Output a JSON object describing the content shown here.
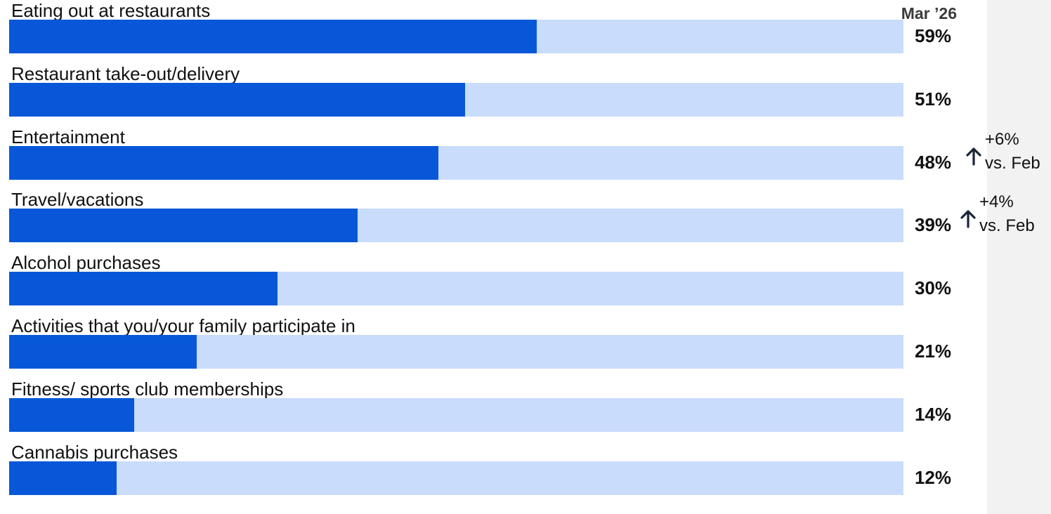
{
  "colors": {
    "bar_fill": "#0757d8",
    "bar_track": "#c9dcfc",
    "side_panel": "#f2f2f2",
    "arrow": "#1a2438"
  },
  "icons": {
    "delta_arrow": "arrow-up-icon"
  },
  "chart_data": {
    "type": "bar",
    "orientation": "horizontal",
    "period_label": "Mar ’26",
    "categories": [
      "Eating out at restaurants",
      "Restaurant take-out/delivery",
      "Entertainment",
      "Travel/vacations",
      "Alcohol purchases",
      "Activities that you/your family participate in",
      "Fitness/ sports club memberships",
      "Cannabis purchases"
    ],
    "values": [
      59,
      51,
      48,
      39,
      30,
      21,
      14,
      12
    ],
    "value_labels": [
      "59%",
      "51%",
      "48%",
      "39%",
      "30%",
      "21%",
      "14%",
      "12%"
    ],
    "unit": "%",
    "xlim": [
      0,
      100
    ],
    "grid": false,
    "annotations": [
      {
        "category": "Entertainment",
        "change": "+6%",
        "comparison": "vs. Feb",
        "direction": "up"
      },
      {
        "category": "Travel/vacations",
        "change": "+4%",
        "comparison": "vs. Feb",
        "direction": "up"
      }
    ]
  }
}
